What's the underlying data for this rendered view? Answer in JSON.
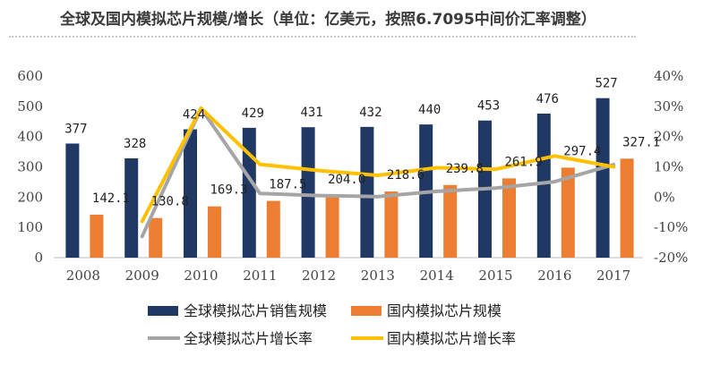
{
  "title": "全球及国内模拟芯片规模/增长（单位：亿美元，按照6.7095中间价汇率调整）",
  "chart_data": {
    "type": "bar",
    "categories": [
      "2008",
      "2009",
      "2010",
      "2011",
      "2012",
      "2013",
      "2014",
      "2015",
      "2016",
      "2017"
    ],
    "series": [
      {
        "name": "全球模拟芯片销售规模",
        "type": "bar",
        "axis": "left",
        "color": "#203864",
        "values": [
          377,
          328,
          424,
          429,
          431,
          432,
          440,
          453,
          476,
          527
        ],
        "labels": [
          "377",
          "328",
          "424",
          "429",
          "431",
          "432",
          "440",
          "453",
          "476",
          "527"
        ]
      },
      {
        "name": "国内模拟芯片规模",
        "type": "bar",
        "axis": "left",
        "color": "#ED7D31",
        "values": [
          142.1,
          130.8,
          169.3,
          187.5,
          204.0,
          218.6,
          239.8,
          261.9,
          297.4,
          327.1
        ],
        "labels": [
          "142.1",
          "130.8",
          "169.3",
          "187.5",
          "204.0",
          "218.6",
          "239.8",
          "261.9",
          "297.4",
          "327.1"
        ]
      },
      {
        "name": "全球模拟芯片增长率",
        "type": "line",
        "axis": "right",
        "color": "#A5A5A5",
        "values": [
          null,
          -13,
          29.3,
          1.2,
          0.5,
          0.2,
          1.9,
          3.0,
          5.1,
          10.7
        ]
      },
      {
        "name": "国内模拟芯片增长率",
        "type": "line",
        "axis": "right",
        "color": "#FFC000",
        "values": [
          null,
          -8,
          29.4,
          10.8,
          8.8,
          7.2,
          9.7,
          9.2,
          13.6,
          10.0
        ]
      }
    ],
    "yleft": {
      "ylim": [
        0,
        600
      ],
      "ticks": [
        "0",
        "100",
        "200",
        "300",
        "400",
        "500",
        "600"
      ]
    },
    "yright": {
      "ylim": [
        -20,
        40
      ],
      "ticks": [
        "-20%",
        "-10%",
        "0%",
        "10%",
        "20%",
        "30%",
        "40%"
      ]
    },
    "legend": {
      "placement": "bottom"
    },
    "grid": false
  }
}
